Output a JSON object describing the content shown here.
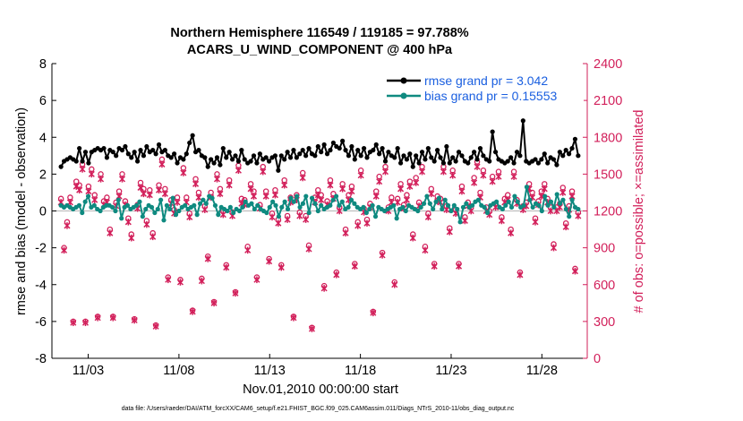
{
  "chart_data": {
    "type": "line",
    "title_line1": "Northern Hemisphere 116549 / 119185 = 97.788%",
    "title_line2": "ACARS_U_WIND_COMPONENT @ 400 hPa",
    "xlabel": "Nov.01,2010 00:00:00 start",
    "ylabel_left": "rmse and bias (model - observation)",
    "ylabel_right": "# of obs: o=possible; ×=assimilated",
    "footer": "data file: /Users/raeder/DAI/ATM_forcXX/CAM6_setup/f.e21.FHIST_BGC.f09_025.CAM6assim.011/Diags_NTrS_2010-11/obs_diag_output.nc",
    "x_range_days": [
      0.5,
      30.0
    ],
    "x_ticks": [
      {
        "day": 2.5,
        "label": "11/03"
      },
      {
        "day": 7.5,
        "label": "11/08"
      },
      {
        "day": 12.5,
        "label": "11/13"
      },
      {
        "day": 17.5,
        "label": "11/18"
      },
      {
        "day": 22.5,
        "label": "11/23"
      },
      {
        "day": 27.5,
        "label": "11/28"
      }
    ],
    "ylim_left": [
      -8,
      8
    ],
    "yticks_left": [
      "8",
      "6",
      "4",
      "2",
      "0",
      "-2",
      "-4",
      "-6",
      "-8"
    ],
    "ylim_right": [
      0,
      2400
    ],
    "yticks_right": [
      "2400",
      "2100",
      "1800",
      "1500",
      "1200",
      "900",
      "600",
      "300",
      "0"
    ],
    "legend": {
      "location": "top-right",
      "rmse_label": "rmse grand pr = 3.042",
      "bias_label": "bias grand pr = 0.15553"
    },
    "colors": {
      "rmse": "#000000",
      "bias": "#0f8a80",
      "obs": "#d21f5a",
      "legend_text": "#1a5fe0",
      "right_axis": "#d21f5a"
    },
    "series": [
      {
        "name": "rmse",
        "values": [
          2.4,
          2.7,
          2.8,
          2.9,
          2.8,
          2.7,
          3.4,
          2.7,
          3.2,
          2.6,
          3.2,
          3.3,
          3.4,
          3.3,
          3.4,
          2.9,
          3.3,
          3.2,
          3.0,
          3.4,
          3.3,
          3.5,
          3.1,
          2.9,
          3.2,
          2.7,
          3.3,
          3.0,
          3.5,
          3.2,
          3.3,
          3.1,
          3.6,
          3.2,
          3.3,
          3.0,
          2.9,
          3.1,
          2.6,
          2.9,
          2.8,
          3.1,
          3.7,
          4.1,
          3.2,
          3.3,
          3.0,
          2.9,
          2.4,
          2.8,
          2.6,
          2.9,
          2.5,
          3.4,
          2.9,
          3.2,
          2.8,
          3.0,
          2.7,
          3.3,
          2.8,
          2.6,
          2.7,
          3.0,
          2.6,
          3.1,
          2.8,
          2.9,
          2.7,
          2.9,
          3.0,
          2.2,
          3.0,
          2.8,
          3.2,
          2.9,
          3.3,
          2.9,
          3.1,
          3.3,
          3.0,
          3.4,
          3.1,
          3.0,
          3.5,
          3.2,
          3.6,
          3.1,
          3.3,
          3.7,
          3.5,
          3.4,
          3.8,
          3.3,
          3.0,
          3.5,
          2.8,
          3.3,
          3.0,
          3.4,
          2.9,
          3.2,
          3.3,
          3.6,
          3.1,
          3.4,
          2.7,
          3.2,
          3.0,
          2.9,
          3.4,
          2.6,
          3.0,
          2.8,
          3.1,
          2.4,
          3.0,
          2.6,
          3.2,
          2.8,
          3.4,
          2.9,
          2.7,
          3.3,
          2.9,
          2.6,
          3.5,
          2.6,
          2.9,
          2.7,
          3.2,
          3.0,
          2.7,
          2.6,
          2.9,
          3.2,
          2.8,
          3.4,
          3.0,
          2.8,
          2.7,
          4.3,
          3.2,
          2.8,
          2.7,
          2.6,
          2.7,
          2.9,
          2.6,
          3.2,
          3.0,
          4.9,
          2.7,
          2.6,
          2.7,
          2.8,
          2.6,
          2.8,
          3.1,
          2.6,
          2.9,
          2.8,
          2.5,
          3.2,
          3.0,
          3.3,
          3.1,
          3.4,
          3.9,
          3.0
        ]
      },
      {
        "name": "bias",
        "values": [
          0.3,
          0.2,
          0.3,
          0.2,
          0.1,
          0.2,
          0.3,
          -0.1,
          0.5,
          0.8,
          0.2,
          0.3,
          0.1,
          0.0,
          0.2,
          0.3,
          0.3,
          0.2,
          0.0,
          0.6,
          -0.4,
          0.2,
          0.3,
          0.1,
          0.2,
          0.3,
          0.5,
          -0.3,
          0.1,
          0.3,
          0.2,
          -0.1,
          0.1,
          0.6,
          -0.5,
          0.3,
          0.1,
          0.7,
          -0.2,
          0.0,
          0.2,
          0.3,
          0.1,
          0.2,
          0.3,
          -0.2,
          0.4,
          0.6,
          0.4,
          0.8,
          0.7,
          0.3,
          -0.2,
          0.2,
          0.1,
          0.0,
          0.2,
          -0.1,
          0.1,
          0.0,
          0.2,
          0.5,
          0.3,
          0.4,
          0.1,
          0.3,
          0.1,
          0.0,
          -0.1,
          0.2,
          0.5,
          0.3,
          -0.3,
          0.2,
          0.5,
          0.1,
          0.7,
          0.5,
          0.8,
          0.2,
          0.4,
          0.8,
          -0.1,
          0.7,
          0.4,
          0.0,
          0.3,
          0.1,
          0.2,
          0.3,
          0.6,
          0.8,
          0.3,
          0.5,
          0.1,
          0.2,
          0.6,
          0.4,
          0.2,
          0.1,
          0.2,
          -0.1,
          0.1,
          0.3,
          -0.3,
          0.2,
          0.1,
          0.0,
          0.1,
          0.2,
          0.3,
          -0.4,
          0.1,
          0.2,
          0.0,
          0.3,
          0.2,
          0.1,
          0.0,
          0.2,
          0.4,
          0.8,
          0.4,
          0.1,
          0.5,
          0.7,
          0.1,
          0.6,
          0.3,
          0.0,
          0.3,
          0.1,
          -0.6,
          0.2,
          0.4,
          0.2,
          0.3,
          0.5,
          0.6,
          0.3,
          0.2,
          -0.1,
          0.3,
          0.4,
          0.5,
          0.2,
          0.1,
          0.3,
          0.5,
          0.2,
          0.8,
          0.5,
          0.2,
          0.3,
          1.3,
          0.6,
          0.2,
          0.4,
          0.3,
          0.0,
          0.8,
          0.3,
          0.5,
          0.2,
          0.9,
          0.4,
          0.6,
          0.1,
          -0.3,
          0.6,
          0.2,
          0.1
        ]
      },
      {
        "name": "obs_possible",
        "values": [
          1300,
          900,
          1110,
          1310,
          300,
          1440,
          1410,
          1580,
          300,
          1400,
          1540,
          1330,
          340,
          1500,
          1280,
          1310,
          1050,
          340,
          1270,
          1360,
          1500,
          1280,
          1140,
          1010,
          320,
          1250,
          1430,
          1380,
          1120,
          1370,
          1020,
          270,
          1410,
          1620,
          1380,
          660,
          1290,
          1210,
          1310,
          640,
          1550,
          1310,
          1180,
          390,
          1460,
          1350,
          650,
          1240,
          830,
          1350,
          460,
          1500,
          1380,
          1200,
          760,
          1450,
          1190,
          540,
          1570,
          1300,
          1290,
          910,
          1420,
          1360,
          660,
          1250,
          1560,
          1360,
          810,
          1180,
          1370,
          1130,
          760,
          1450,
          1160,
          1310,
          340,
          1330,
          1190,
          1510,
          1160,
          920,
          250,
          1310,
          1370,
          1330,
          590,
          1280,
          1450,
          1340,
          700,
          1230,
          1420,
          1050,
          1330,
          1400,
          770,
          1110,
          1530,
          1220,
          1130,
          1260,
          380,
          1360,
          1480,
          860,
          1560,
          1230,
          1310,
          620,
          1300,
          1420,
          1250,
          1330,
          1440,
          1010,
          1470,
          1270,
          1560,
          910,
          1180,
          1380,
          770,
          1320,
          1300,
          1560,
          1240,
          1060,
          1530,
          1210,
          770,
          1400,
          1150,
          1270,
          1230,
          1470,
          1600,
          1350,
          1530,
          1230,
          1200,
          1480,
          1260,
          1520,
          1150,
          1300,
          1330,
          1050,
          1520,
          1290,
          700,
          1240,
          1270,
          1420,
          1350,
          1140,
          1280,
          1360,
          1420,
          1300,
          1230,
          930,
          1230,
          1260,
          1390,
          1100,
          1240,
          1360,
          730,
          1190
        ]
      },
      {
        "name": "obs_assimilated",
        "values": [
          1270,
          880,
          1080,
          1270,
          290,
          1400,
          1370,
          1540,
          290,
          1360,
          1500,
          1290,
          330,
          1460,
          1250,
          1270,
          1020,
          330,
          1240,
          1320,
          1460,
          1250,
          1110,
          980,
          310,
          1220,
          1390,
          1340,
          1090,
          1330,
          990,
          260,
          1370,
          1580,
          1340,
          640,
          1260,
          1180,
          1270,
          620,
          1510,
          1270,
          1150,
          380,
          1420,
          1310,
          630,
          1210,
          810,
          1310,
          450,
          1460,
          1340,
          1170,
          740,
          1410,
          1160,
          530,
          1530,
          1260,
          1250,
          880,
          1380,
          1320,
          640,
          1220,
          1520,
          1320,
          790,
          1150,
          1330,
          1100,
          740,
          1410,
          1130,
          1270,
          330,
          1290,
          1160,
          1470,
          1130,
          890,
          240,
          1270,
          1330,
          1290,
          570,
          1250,
          1410,
          1300,
          680,
          1200,
          1380,
          1020,
          1290,
          1360,
          750,
          1080,
          1490,
          1190,
          1100,
          1230,
          370,
          1320,
          1440,
          840,
          1520,
          1200,
          1270,
          600,
          1270,
          1380,
          1220,
          1290,
          1400,
          980,
          1430,
          1240,
          1520,
          880,
          1150,
          1340,
          750,
          1280,
          1270,
          1520,
          1210,
          1030,
          1490,
          1180,
          750,
          1360,
          1120,
          1240,
          1200,
          1430,
          1560,
          1310,
          1490,
          1200,
          1170,
          1440,
          1230,
          1480,
          1120,
          1270,
          1290,
          1020,
          1480,
          1260,
          680,
          1210,
          1240,
          1380,
          1310,
          1110,
          1250,
          1320,
          1380,
          1270,
          1200,
          900,
          1200,
          1230,
          1350,
          1070,
          1210,
          1320,
          710,
          1160
        ]
      }
    ]
  }
}
